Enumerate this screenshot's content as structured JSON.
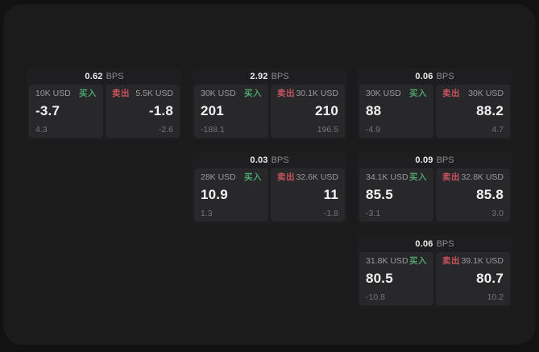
{
  "labels": {
    "buy": "买入",
    "sell": "卖出",
    "bps": "BPS"
  },
  "colors": {
    "buy_accent": "#4ca36e",
    "sell_accent": "#c9545f",
    "surface": "#1b1b1c",
    "card": "#1e1e20",
    "panel": "#28282a"
  },
  "cards": [
    {
      "bps": "0.62",
      "buy": {
        "size": "10K USD",
        "price": "-3.7",
        "delta": "4.3"
      },
      "sell": {
        "size": "5.5K USD",
        "price": "-1.8",
        "delta": "-2.6"
      }
    },
    {
      "bps": "2.92",
      "buy": {
        "size": "30K USD",
        "price": "201",
        "delta": "-188.1"
      },
      "sell": {
        "size": "30.1K USD",
        "price": "210",
        "delta": "196.5"
      }
    },
    {
      "bps": "0.06",
      "buy": {
        "size": "30K USD",
        "price": "88",
        "delta": "-4.9"
      },
      "sell": {
        "size": "30K USD",
        "price": "88.2",
        "delta": "4.7"
      }
    },
    {
      "bps": "0.03",
      "buy": {
        "size": "28K USD",
        "price": "10.9",
        "delta": "1.3"
      },
      "sell": {
        "size": "32.6K USD",
        "price": "11",
        "delta": "-1.8"
      }
    },
    {
      "bps": "0.09",
      "buy": {
        "size": "34.1K USD",
        "price": "85.5",
        "delta": "-3.1"
      },
      "sell": {
        "size": "32.8K USD",
        "price": "85.8",
        "delta": "3.0"
      }
    },
    {
      "bps": "0.06",
      "buy": {
        "size": "31.8K USD",
        "price": "80.5",
        "delta": "-10.8"
      },
      "sell": {
        "size": "39.1K USD",
        "price": "80.7",
        "delta": "10.2"
      }
    }
  ]
}
